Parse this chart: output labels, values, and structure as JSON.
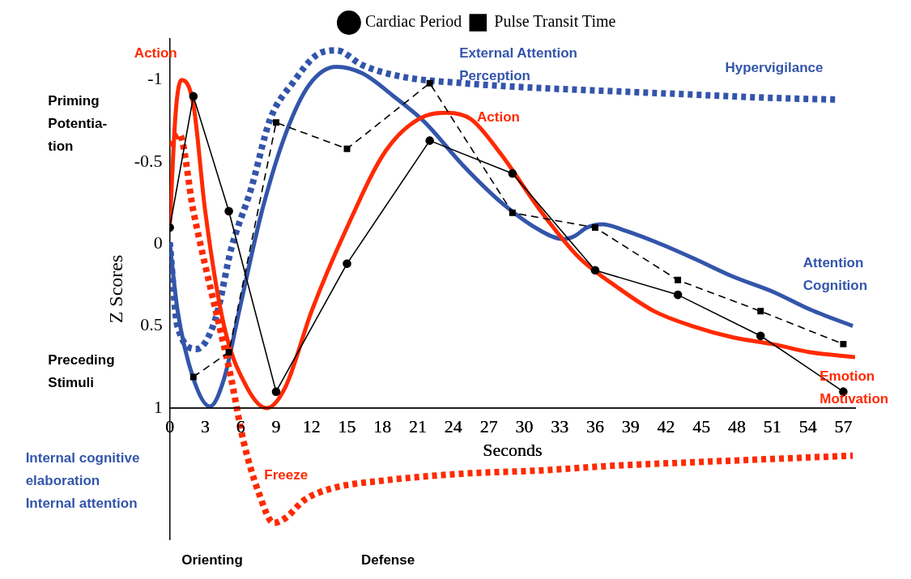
{
  "chart_data": {
    "type": "line",
    "xlabel": "Seconds",
    "ylabel": "Z Scores",
    "xlim": [
      0,
      58
    ],
    "xticks": [
      0,
      3,
      6,
      9,
      12,
      15,
      18,
      21,
      24,
      27,
      30,
      33,
      36,
      39,
      42,
      45,
      48,
      51,
      54,
      57
    ],
    "ylim": [
      1.8,
      -1.25
    ],
    "yticks": [
      -1,
      -0.5,
      0,
      0.5,
      1
    ],
    "grid": false,
    "legend": "top",
    "series": [
      {
        "name": "Cardiac Period",
        "color": "#000000",
        "marker": "circle",
        "line_style": "solid",
        "x": [
          0,
          2,
          5,
          9,
          15,
          22,
          29,
          36,
          43,
          50,
          57
        ],
        "values": [
          -0.1,
          -0.9,
          -0.2,
          0.9,
          0.12,
          -0.63,
          -0.43,
          0.16,
          0.31,
          0.56,
          0.9
        ]
      },
      {
        "name": "Pulse Transit Time",
        "color": "#000000",
        "marker": "square",
        "line_style": "dashed",
        "x": [
          2,
          5,
          9,
          15,
          22,
          29,
          36,
          43,
          50,
          57
        ],
        "values": [
          0.81,
          0.66,
          -0.74,
          -0.58,
          -0.98,
          -0.19,
          -0.1,
          0.22,
          0.41,
          0.61
        ]
      },
      {
        "color": "#ff2a00",
        "marker": "none",
        "line_style": "solid",
        "x": [
          0,
          0.5,
          1,
          2,
          3,
          4.6,
          6.5,
          8.2,
          9.8,
          12,
          15,
          18.3,
          21.6,
          23.5,
          25.5,
          28,
          31.4,
          34.6,
          38,
          41,
          44.2,
          47.7,
          51,
          54.2,
          58
        ],
        "values": [
          -0.1,
          -0.8,
          -1.0,
          -0.85,
          -0.2,
          0.5,
          0.87,
          1.0,
          0.87,
          0.41,
          -0.1,
          -0.57,
          -0.78,
          -0.8,
          -0.76,
          -0.55,
          -0.2,
          0.08,
          0.27,
          0.41,
          0.5,
          0.57,
          0.61,
          0.66,
          0.69
        ]
      },
      {
        "color": "#ff2a00",
        "marker": "none",
        "line_style": "dotted",
        "x": [
          0,
          0.8,
          2,
          3,
          4.2,
          5.2,
          6.2,
          7.5,
          8.8,
          9.8,
          11.4,
          13.7,
          18.3,
          24.8,
          31.4,
          37.9,
          44.4,
          51,
          57.8
        ],
        "values": [
          -0.6,
          -0.67,
          -0.2,
          0.13,
          0.5,
          0.82,
          1.19,
          1.51,
          1.7,
          1.67,
          1.56,
          1.49,
          1.44,
          1.4,
          1.38,
          1.35,
          1.33,
          1.31,
          1.29
        ]
      },
      {
        "color": "#3355aa",
        "marker": "none",
        "line_style": "solid",
        "x": [
          0,
          0.65,
          2,
          3.4,
          4.6,
          5.9,
          7.8,
          9.8,
          11.8,
          14.1,
          16.3,
          18.95,
          21.6,
          24.8,
          28.1,
          31.4,
          33.3,
          34.3,
          35.3,
          36.6,
          38.6,
          41.2,
          44.4,
          47.7,
          51,
          54.2,
          57.8
        ],
        "values": [
          -0.01,
          0.4,
          0.82,
          0.99,
          0.82,
          0.4,
          -0.2,
          -0.67,
          -0.97,
          -1.08,
          -1.04,
          -0.9,
          -0.74,
          -0.48,
          -0.25,
          -0.08,
          -0.03,
          -0.05,
          -0.1,
          -0.12,
          -0.08,
          -0.01,
          0.09,
          0.2,
          0.29,
          0.4,
          0.5
        ]
      },
      {
        "color": "#3355aa",
        "marker": "none",
        "line_style": "dotted",
        "x": [
          0,
          0.65,
          2.3,
          3.9,
          5.2,
          6.9,
          8.5,
          10.5,
          12.4,
          14.1,
          16.3,
          19.6,
          24.8,
          31.4,
          37.9,
          44.4,
          51,
          56.5
        ],
        "values": [
          -0.01,
          0.5,
          0.64,
          0.45,
          0.03,
          -0.34,
          -0.76,
          -0.99,
          -1.15,
          -1.18,
          -1.09,
          -1.02,
          -0.98,
          -0.95,
          -0.93,
          -0.91,
          -0.89,
          -0.88
        ]
      }
    ],
    "annotations": [
      "Action",
      "External Attention\nPerception",
      "Hypervigilance",
      "Action",
      "Priming\nPotentia-\ntion",
      "Preceding\nStimuli",
      "Attention\nCognition",
      "Emotion\nMotivation",
      "Internal cognitive\nelaboration\nInternal attention",
      "Freeze",
      "Orienting",
      "Defense"
    ]
  }
}
